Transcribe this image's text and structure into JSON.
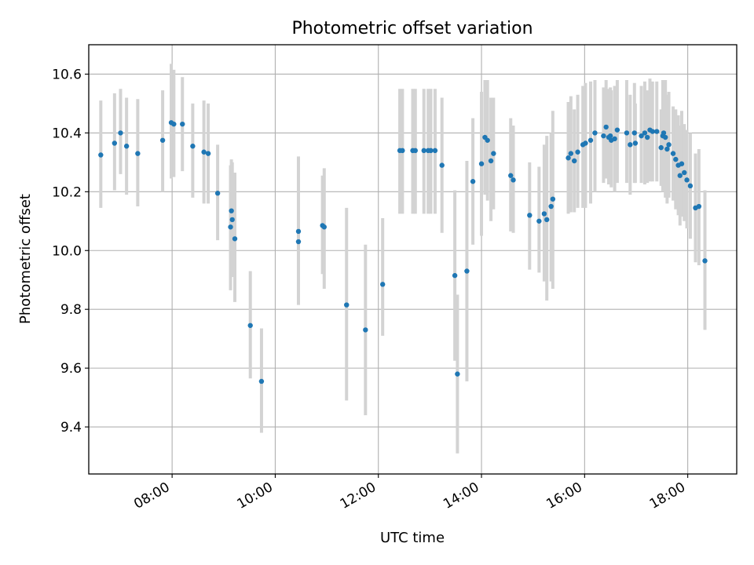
{
  "chart_data": {
    "type": "scatter",
    "title": "Photometric offset variation",
    "xlabel": "UTC time",
    "ylabel": "Photometric offset",
    "x_unit": "UTC hours",
    "xlim": [
      "06:23",
      "18:57"
    ],
    "ylim": [
      9.24,
      10.7
    ],
    "xticks": [
      "08:00",
      "10:00",
      "12:00",
      "14:00",
      "16:00",
      "18:00"
    ],
    "yticks": [
      "9.4",
      "9.6",
      "9.8",
      "10.0",
      "10.2",
      "10.4",
      "10.6"
    ],
    "grid": true,
    "colors": {
      "points": "#1f77b4",
      "error_bars": "#d3d3d3",
      "grid": "#b0b0b0",
      "axes": "#000000"
    },
    "series": [
      {
        "x": [
          "06:37",
          "06:53",
          "07:00",
          "07:07",
          "07:20",
          "07:49",
          "07:59",
          "08:02",
          "08:12",
          "08:24",
          "08:37",
          "08:42",
          "08:53",
          "09:08",
          "09:09",
          "09:10",
          "09:13",
          "09:31",
          "09:44",
          "10:27",
          "10:27",
          "10:55",
          "10:57",
          "11:23",
          "11:45",
          "12:05",
          "12:25",
          "12:28",
          "12:40",
          "12:43",
          "12:53",
          "12:58",
          "13:01",
          "13:06",
          "13:14",
          "13:29",
          "13:32",
          "13:43",
          "13:50",
          "14:00",
          "14:04",
          "14:07",
          "14:11",
          "14:14",
          "14:34",
          "14:37",
          "14:56",
          "15:07",
          "15:13",
          "15:16",
          "15:21",
          "15:23",
          "15:41",
          "15:44",
          "15:48",
          "15:52",
          "15:58",
          "16:01",
          "16:07",
          "16:12",
          "16:22",
          "16:25",
          "16:28",
          "16:30",
          "16:31",
          "16:35",
          "16:38",
          "16:49",
          "16:53",
          "16:58",
          "16:59",
          "17:06",
          "17:10",
          "17:13",
          "17:16",
          "17:19",
          "17:24",
          "17:29",
          "17:31",
          "17:32",
          "17:34",
          "17:36",
          "17:38",
          "17:43",
          "17:46",
          "17:49",
          "17:51",
          "17:53",
          "17:56",
          "17:59",
          "18:03",
          "18:09",
          "18:13",
          "18:20"
        ],
        "y": [
          10.325,
          10.365,
          10.4,
          10.355,
          10.33,
          10.375,
          10.435,
          10.43,
          10.43,
          10.355,
          10.335,
          10.33,
          10.195,
          10.08,
          10.135,
          10.105,
          10.04,
          9.745,
          9.555,
          10.065,
          10.03,
          10.085,
          10.08,
          9.815,
          9.73,
          9.885,
          10.34,
          10.34,
          10.34,
          10.34,
          10.34,
          10.34,
          10.34,
          10.34,
          10.29,
          9.915,
          9.58,
          9.93,
          10.235,
          10.295,
          10.385,
          10.375,
          10.305,
          10.33,
          10.255,
          10.24,
          10.12,
          10.1,
          10.125,
          10.105,
          10.15,
          10.175,
          10.315,
          10.33,
          10.305,
          10.335,
          10.36,
          10.365,
          10.375,
          10.4,
          10.39,
          10.42,
          10.385,
          10.39,
          10.375,
          10.38,
          10.41,
          10.4,
          10.36,
          10.4,
          10.365,
          10.39,
          10.4,
          10.385,
          10.41,
          10.405,
          10.405,
          10.35,
          10.39,
          10.4,
          10.385,
          10.345,
          10.36,
          10.33,
          10.31,
          10.29,
          10.255,
          10.295,
          10.265,
          10.24,
          10.22,
          10.145,
          10.15,
          9.965
        ],
        "err_low": [
          10.145,
          10.205,
          10.26,
          10.19,
          10.15,
          10.2,
          10.245,
          10.25,
          10.27,
          10.18,
          10.16,
          10.16,
          10.035,
          9.865,
          9.92,
          9.91,
          9.825,
          9.565,
          9.38,
          9.815,
          9.85,
          9.92,
          9.87,
          9.49,
          9.44,
          9.71,
          10.125,
          10.125,
          10.125,
          10.125,
          10.125,
          10.125,
          10.125,
          10.125,
          10.06,
          9.625,
          9.31,
          9.555,
          10.02,
          10.05,
          10.19,
          10.17,
          10.1,
          10.14,
          10.065,
          10.06,
          9.935,
          9.925,
          9.895,
          9.83,
          9.895,
          9.87,
          10.125,
          10.13,
          10.13,
          10.145,
          10.145,
          10.145,
          10.16,
          10.2,
          10.23,
          10.245,
          10.225,
          10.225,
          10.215,
          10.2,
          10.23,
          10.23,
          10.19,
          10.23,
          10.23,
          10.23,
          10.225,
          10.23,
          10.235,
          10.235,
          10.235,
          10.22,
          10.2,
          10.21,
          10.18,
          10.16,
          10.18,
          10.17,
          10.14,
          10.12,
          10.085,
          10.115,
          10.1,
          10.075,
          10.04,
          9.96,
          9.95,
          9.73
        ],
        "err_high": [
          10.51,
          10.535,
          10.55,
          10.52,
          10.515,
          10.545,
          10.635,
          10.615,
          10.59,
          10.5,
          10.51,
          10.5,
          10.36,
          10.29,
          10.31,
          10.3,
          10.265,
          9.93,
          9.735,
          10.32,
          10.215,
          10.255,
          10.28,
          10.145,
          10.02,
          10.11,
          10.55,
          10.55,
          10.55,
          10.55,
          10.55,
          10.55,
          10.55,
          10.55,
          10.52,
          10.205,
          9.85,
          10.305,
          10.45,
          10.54,
          10.58,
          10.58,
          10.52,
          10.52,
          10.45,
          10.425,
          10.3,
          10.285,
          10.36,
          10.39,
          10.4,
          10.475,
          10.505,
          10.525,
          10.48,
          10.53,
          10.56,
          10.57,
          10.575,
          10.58,
          10.555,
          10.58,
          10.55,
          10.555,
          10.545,
          10.56,
          10.58,
          10.58,
          10.53,
          10.57,
          10.5,
          10.56,
          10.575,
          10.545,
          10.585,
          10.575,
          10.575,
          10.48,
          10.58,
          10.575,
          10.58,
          10.53,
          10.54,
          10.49,
          10.48,
          10.46,
          10.425,
          10.475,
          10.43,
          10.41,
          10.4,
          10.33,
          10.345,
          10.205
        ]
      }
    ]
  }
}
